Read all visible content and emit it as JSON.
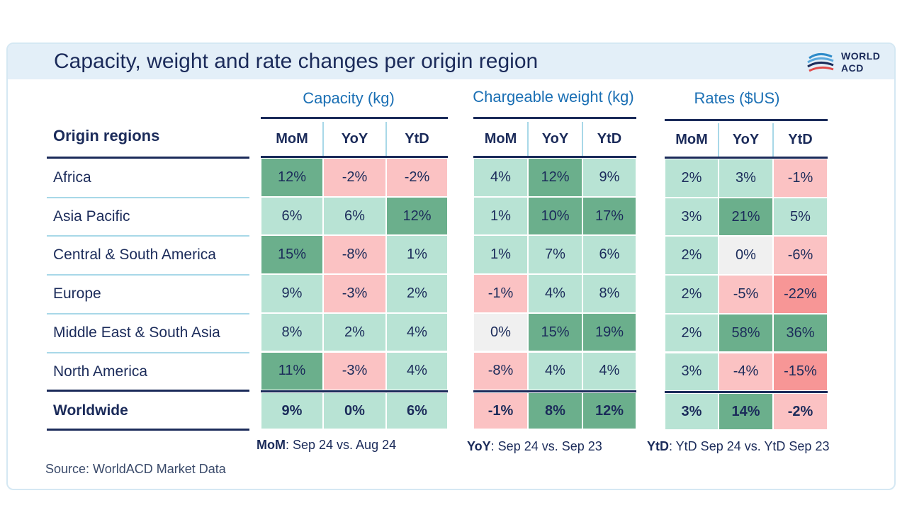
{
  "title": "Capacity, weight and rate changes per origin region",
  "logo": {
    "line1": "WORLD",
    "line2": "ACD"
  },
  "row_header": "Origin regions",
  "groups": [
    {
      "title": "Capacity (kg)",
      "columns": [
        "MoM",
        "YoY",
        "YtD"
      ]
    },
    {
      "title": "Chargeable weight (kg)",
      "columns": [
        "MoM",
        "YoY",
        "YtD"
      ]
    },
    {
      "title": "Rates ($US)",
      "columns": [
        "MoM",
        "YoY",
        "YtD"
      ]
    }
  ],
  "rows": [
    {
      "label": "Africa",
      "values": [
        [
          "12%",
          "-2%",
          "-2%"
        ],
        [
          "4%",
          "12%",
          "9%"
        ],
        [
          "2%",
          "3%",
          "-1%"
        ]
      ]
    },
    {
      "label": "Asia Pacific",
      "values": [
        [
          "6%",
          "6%",
          "12%"
        ],
        [
          "1%",
          "10%",
          "17%"
        ],
        [
          "3%",
          "21%",
          "5%"
        ]
      ]
    },
    {
      "label": "Central & South America",
      "values": [
        [
          "15%",
          "-8%",
          "1%"
        ],
        [
          "1%",
          "7%",
          "6%"
        ],
        [
          "2%",
          "0%",
          "-6%"
        ]
      ]
    },
    {
      "label": "Europe",
      "values": [
        [
          "9%",
          "-3%",
          "2%"
        ],
        [
          "-1%",
          "4%",
          "8%"
        ],
        [
          "2%",
          "-5%",
          "-22%"
        ]
      ]
    },
    {
      "label": "Middle East & South Asia",
      "values": [
        [
          "8%",
          "2%",
          "4%"
        ],
        [
          "0%",
          "15%",
          "19%"
        ],
        [
          "2%",
          "58%",
          "36%"
        ]
      ]
    },
    {
      "label": "North America",
      "values": [
        [
          "11%",
          "-3%",
          "4%"
        ],
        [
          "-8%",
          "4%",
          "4%"
        ],
        [
          "3%",
          "-4%",
          "-15%"
        ]
      ]
    },
    {
      "label": "Worldwide",
      "values": [
        [
          "9%",
          "0%",
          "6%"
        ],
        [
          "-1%",
          "8%",
          "12%"
        ],
        [
          "3%",
          "14%",
          "-2%"
        ]
      ]
    }
  ],
  "footnotes": [
    {
      "key": "MoM",
      "text": ":  Sep 24 vs. Aug 24"
    },
    {
      "key": "YoY",
      "text": ": Sep 24 vs. Sep 23"
    },
    {
      "key": "YtD",
      "text": ": YtD Sep 24 vs. YtD Sep 23"
    }
  ],
  "source": "Source: WorldACD Market Data",
  "colors": {
    "strong_green": "#6baf8c",
    "light_green": "#b8e3d4",
    "neutral": "#f0f0f0",
    "light_red": "#fbc2c3",
    "strong_red": "#f79696",
    "navy": "#1b2b5a",
    "blue": "#1a6fb4"
  }
}
